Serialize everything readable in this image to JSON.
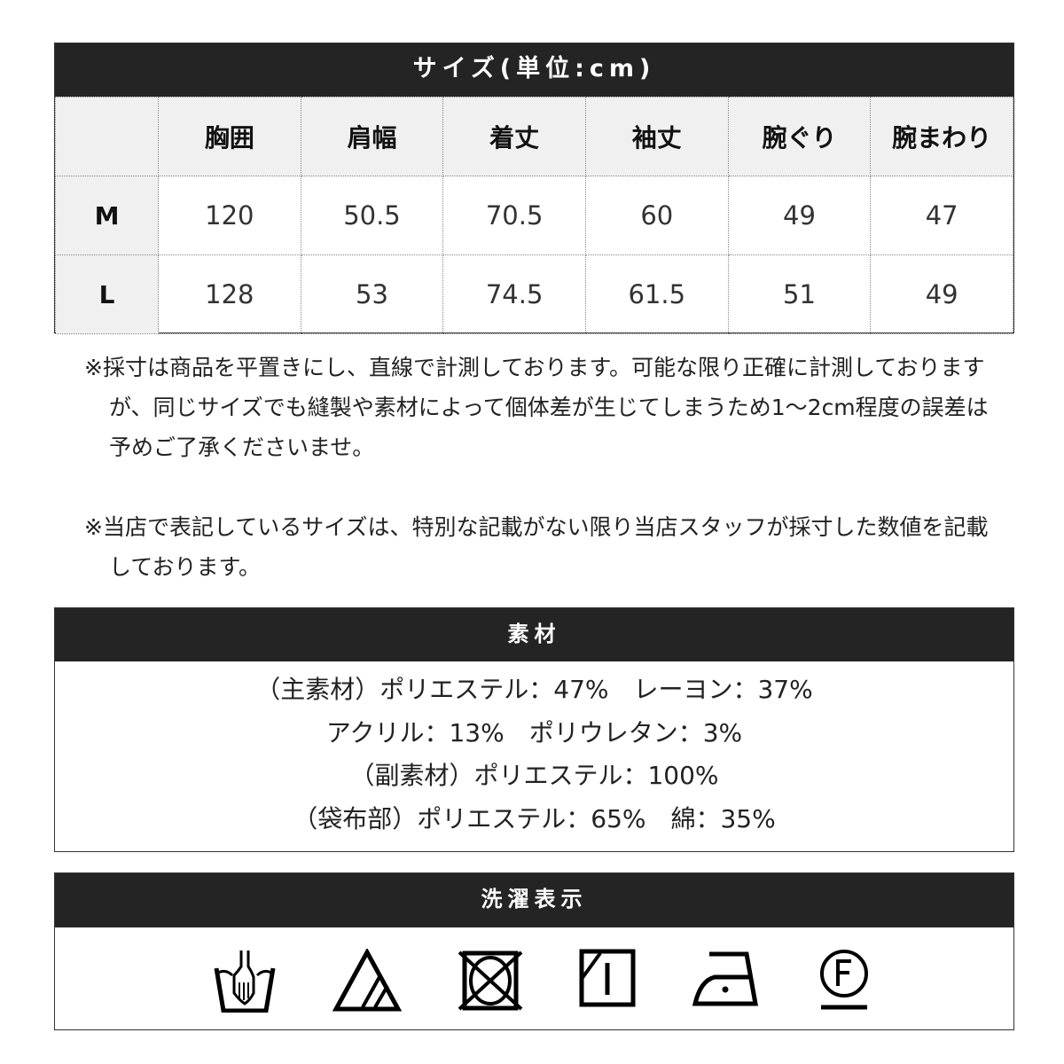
{
  "size_table": {
    "title": "サイズ(単位:cm)",
    "columns": [
      "",
      "胸囲",
      "肩幅",
      "着丈",
      "袖丈",
      "腕ぐり",
      "腕まわり"
    ],
    "rows": [
      {
        "size": "M",
        "values": [
          "120",
          "50.5",
          "70.5",
          "60",
          "49",
          "47"
        ]
      },
      {
        "size": "L",
        "values": [
          "128",
          "53",
          "74.5",
          "61.5",
          "51",
          "49"
        ]
      }
    ]
  },
  "notes": [
    "※採寸は商品を平置きにし、直線で計測しております。可能な限り正確に計測しておりますが、同じサイズでも縫製や素材によって個体差が生じてしまうため1～2cm程度の誤差は予めご了承くださいませ。",
    "※当店で表記しているサイズは、特別な記載がない限り当店スタッフが採寸した数値を記載しております。"
  ],
  "material": {
    "title": "素材",
    "lines": [
      "（主素材）ポリエステル：47%　レーヨン：37%",
      "アクリル：13%　ポリウレタン：3%",
      "（副素材）ポリエステル：100%",
      "（袋布部）ポリエステル：65%　綿：35%"
    ]
  },
  "care": {
    "title": "洗濯表示",
    "icons": [
      "hand-wash-icon",
      "oxygen-bleach-only-icon",
      "no-tumble-dry-icon",
      "line-dry-shade-icon",
      "low-iron-icon",
      "dry-clean-f-icon"
    ]
  }
}
